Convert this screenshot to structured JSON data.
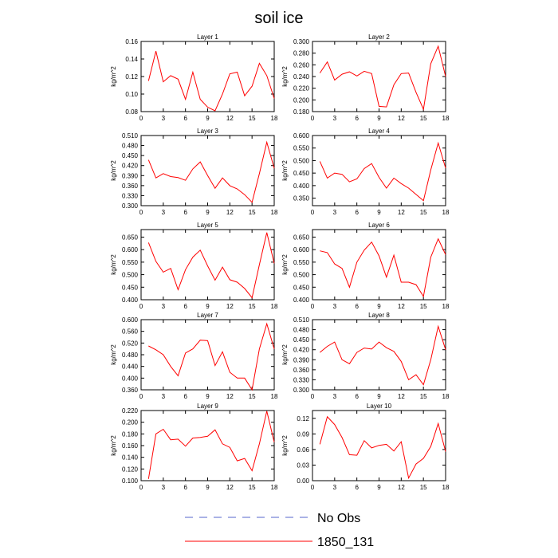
{
  "title": "soil ice",
  "legend": [
    {
      "label": "No Obs",
      "color": "#5566cc",
      "dash": true
    },
    {
      "label": "1850_131",
      "color": "#ff0000",
      "dash": false
    }
  ],
  "chart_data": [
    {
      "type": "line",
      "title": "Layer 1",
      "ylabel": "kg/m^2",
      "xlim": [
        0,
        18
      ],
      "xticks": [
        0,
        3,
        6,
        9,
        12,
        15,
        18
      ],
      "xtick_labels": [
        "0",
        "3",
        "6",
        "9",
        "12",
        "15",
        "18"
      ],
      "ylim": [
        0.08,
        0.16
      ],
      "yticks": [
        0.08,
        0.1,
        0.12,
        0.14,
        0.16
      ],
      "ytick_labels": [
        "0.08",
        "0.10",
        "0.12",
        "0.14",
        "0.16"
      ],
      "series": [
        {
          "name": "1850_131",
          "x": [
            1,
            2,
            3,
            4,
            5,
            6,
            7,
            8,
            9,
            10,
            11,
            12,
            13,
            14,
            15,
            16,
            17,
            18
          ],
          "values": [
            0.115,
            0.149,
            0.114,
            0.121,
            0.117,
            0.094,
            0.125,
            0.094,
            0.085,
            0.081,
            0.1,
            0.123,
            0.125,
            0.098,
            0.109,
            0.135,
            0.121,
            0.095
          ]
        }
      ]
    },
    {
      "type": "line",
      "title": "Layer 2",
      "ylabel": "kg/m^2",
      "xlim": [
        0,
        18
      ],
      "xticks": [
        0,
        3,
        6,
        9,
        12,
        15,
        18
      ],
      "xtick_labels": [
        "0",
        "3",
        "6",
        "9",
        "12",
        "15",
        "18"
      ],
      "ylim": [
        0.18,
        0.3
      ],
      "yticks": [
        0.18,
        0.2,
        0.22,
        0.24,
        0.26,
        0.28,
        0.3
      ],
      "ytick_labels": [
        "0.180",
        "0.200",
        "0.220",
        "0.240",
        "0.260",
        "0.280",
        "0.300"
      ],
      "series": [
        {
          "name": "1850_131",
          "x": [
            1,
            2,
            3,
            4,
            5,
            6,
            7,
            8,
            9,
            10,
            11,
            12,
            13,
            14,
            15,
            16,
            17,
            18
          ],
          "values": [
            0.246,
            0.265,
            0.234,
            0.244,
            0.248,
            0.241,
            0.249,
            0.245,
            0.189,
            0.188,
            0.226,
            0.245,
            0.246,
            0.213,
            0.184,
            0.262,
            0.292,
            0.24
          ]
        }
      ]
    },
    {
      "type": "line",
      "title": "Layer 3",
      "ylabel": "kg/m^2",
      "xlim": [
        0,
        18
      ],
      "xticks": [
        0,
        3,
        6,
        9,
        12,
        15,
        18
      ],
      "xtick_labels": [
        "0",
        "3",
        "6",
        "9",
        "12",
        "15",
        "18"
      ],
      "ylim": [
        0.3,
        0.51
      ],
      "yticks": [
        0.3,
        0.33,
        0.36,
        0.39,
        0.42,
        0.45,
        0.48,
        0.51
      ],
      "ytick_labels": [
        "0.300",
        "0.330",
        "0.360",
        "0.390",
        "0.420",
        "0.450",
        "0.480",
        "0.510"
      ],
      "series": [
        {
          "name": "1850_131",
          "x": [
            1,
            2,
            3,
            4,
            5,
            6,
            7,
            8,
            9,
            10,
            11,
            12,
            13,
            14,
            15,
            16,
            17,
            18
          ],
          "values": [
            0.437,
            0.383,
            0.396,
            0.387,
            0.384,
            0.376,
            0.41,
            0.431,
            0.39,
            0.352,
            0.383,
            0.36,
            0.35,
            0.333,
            0.31,
            0.396,
            0.49,
            0.412
          ]
        }
      ]
    },
    {
      "type": "line",
      "title": "Layer 4",
      "ylabel": "kg/m^2",
      "xlim": [
        0,
        18
      ],
      "xticks": [
        0,
        3,
        6,
        9,
        12,
        15,
        18
      ],
      "xtick_labels": [
        "0",
        "3",
        "6",
        "9",
        "12",
        "15",
        "18"
      ],
      "ylim": [
        0.32,
        0.6
      ],
      "yticks": [
        0.35,
        0.4,
        0.45,
        0.5,
        0.55,
        0.6
      ],
      "ytick_labels": [
        "0.350",
        "0.400",
        "0.450",
        "0.500",
        "0.550",
        "0.600"
      ],
      "series": [
        {
          "name": "1850_131",
          "x": [
            1,
            2,
            3,
            4,
            5,
            6,
            7,
            8,
            9,
            10,
            11,
            12,
            13,
            14,
            15,
            16,
            17,
            18
          ],
          "values": [
            0.497,
            0.43,
            0.45,
            0.445,
            0.415,
            0.427,
            0.468,
            0.488,
            0.433,
            0.39,
            0.43,
            0.408,
            0.39,
            0.365,
            0.34,
            0.463,
            0.57,
            0.47
          ]
        }
      ]
    },
    {
      "type": "line",
      "title": "Layer 5",
      "ylabel": "kg/m^2",
      "xlim": [
        0,
        18
      ],
      "xticks": [
        0,
        3,
        6,
        9,
        12,
        15,
        18
      ],
      "xtick_labels": [
        "0",
        "3",
        "6",
        "9",
        "12",
        "15",
        "18"
      ],
      "ylim": [
        0.4,
        0.68
      ],
      "yticks": [
        0.4,
        0.45,
        0.5,
        0.55,
        0.6,
        0.65
      ],
      "ytick_labels": [
        "0.400",
        "0.450",
        "0.500",
        "0.550",
        "0.600",
        "0.650"
      ],
      "series": [
        {
          "name": "1850_131",
          "x": [
            1,
            2,
            3,
            4,
            5,
            6,
            7,
            8,
            9,
            10,
            11,
            12,
            13,
            14,
            15,
            16,
            17,
            18
          ],
          "values": [
            0.628,
            0.553,
            0.51,
            0.525,
            0.44,
            0.52,
            0.57,
            0.598,
            0.535,
            0.478,
            0.53,
            0.48,
            0.47,
            0.445,
            0.408,
            0.54,
            0.668,
            0.545
          ]
        }
      ]
    },
    {
      "type": "line",
      "title": "Layer 6",
      "ylabel": "kg/m^2",
      "xlim": [
        0,
        18
      ],
      "xticks": [
        0,
        3,
        6,
        9,
        12,
        15,
        18
      ],
      "xtick_labels": [
        "0",
        "3",
        "6",
        "9",
        "12",
        "15",
        "18"
      ],
      "ylim": [
        0.4,
        0.68
      ],
      "yticks": [
        0.4,
        0.45,
        0.5,
        0.55,
        0.6,
        0.65
      ],
      "ytick_labels": [
        "0.400",
        "0.450",
        "0.500",
        "0.550",
        "0.600",
        "0.650"
      ],
      "series": [
        {
          "name": "1850_131",
          "x": [
            1,
            2,
            3,
            4,
            5,
            6,
            7,
            8,
            9,
            10,
            11,
            12,
            13,
            14,
            15,
            16,
            17,
            18
          ],
          "values": [
            0.595,
            0.588,
            0.543,
            0.525,
            0.45,
            0.55,
            0.598,
            0.63,
            0.575,
            0.49,
            0.578,
            0.47,
            0.47,
            0.46,
            0.413,
            0.57,
            0.643,
            0.58
          ]
        }
      ]
    },
    {
      "type": "line",
      "title": "Layer 7",
      "ylabel": "kg/m^2",
      "xlim": [
        0,
        18
      ],
      "xticks": [
        0,
        3,
        6,
        9,
        12,
        15,
        18
      ],
      "xtick_labels": [
        "0",
        "3",
        "6",
        "9",
        "12",
        "15",
        "18"
      ],
      "ylim": [
        0.36,
        0.6
      ],
      "yticks": [
        0.36,
        0.4,
        0.44,
        0.48,
        0.52,
        0.56,
        0.6
      ],
      "ytick_labels": [
        "0.360",
        "0.400",
        "0.440",
        "0.480",
        "0.520",
        "0.560",
        "0.600"
      ],
      "series": [
        {
          "name": "1850_131",
          "x": [
            1,
            2,
            3,
            4,
            5,
            6,
            7,
            8,
            9,
            10,
            11,
            12,
            13,
            14,
            15,
            16,
            17,
            18
          ],
          "values": [
            0.51,
            0.497,
            0.48,
            0.44,
            0.408,
            0.486,
            0.5,
            0.53,
            0.528,
            0.443,
            0.49,
            0.42,
            0.4,
            0.4,
            0.36,
            0.5,
            0.586,
            0.5
          ]
        }
      ]
    },
    {
      "type": "line",
      "title": "Layer 8",
      "ylabel": "kg/m^2",
      "xlim": [
        0,
        18
      ],
      "xticks": [
        0,
        3,
        6,
        9,
        12,
        15,
        18
      ],
      "xtick_labels": [
        "0",
        "3",
        "6",
        "9",
        "12",
        "15",
        "18"
      ],
      "ylim": [
        0.3,
        0.51
      ],
      "yticks": [
        0.3,
        0.33,
        0.36,
        0.39,
        0.42,
        0.45,
        0.48,
        0.51
      ],
      "ytick_labels": [
        "0.300",
        "0.330",
        "0.360",
        "0.390",
        "0.420",
        "0.450",
        "0.480",
        "0.510"
      ],
      "series": [
        {
          "name": "1850_131",
          "x": [
            1,
            2,
            3,
            4,
            5,
            6,
            7,
            8,
            9,
            10,
            11,
            12,
            13,
            14,
            15,
            16,
            17,
            18
          ],
          "values": [
            0.412,
            0.43,
            0.443,
            0.39,
            0.378,
            0.412,
            0.425,
            0.422,
            0.443,
            0.426,
            0.415,
            0.385,
            0.33,
            0.345,
            0.315,
            0.39,
            0.49,
            0.42
          ]
        }
      ]
    },
    {
      "type": "line",
      "title": "Layer 9",
      "ylabel": "kg/m^2",
      "xlim": [
        0,
        18
      ],
      "xticks": [
        0,
        3,
        6,
        9,
        12,
        15,
        18
      ],
      "xtick_labels": [
        "0",
        "3",
        "6",
        "9",
        "12",
        "15",
        "18"
      ],
      "ylim": [
        0.1,
        0.22
      ],
      "yticks": [
        0.1,
        0.12,
        0.14,
        0.16,
        0.18,
        0.2,
        0.22
      ],
      "ytick_labels": [
        "0.100",
        "0.120",
        "0.140",
        "0.160",
        "0.180",
        "0.200",
        "0.220"
      ],
      "series": [
        {
          "name": "1850_131",
          "x": [
            1,
            2,
            3,
            4,
            5,
            6,
            7,
            8,
            9,
            10,
            11,
            12,
            13,
            14,
            15,
            16,
            17,
            18
          ],
          "values": [
            0.103,
            0.18,
            0.188,
            0.17,
            0.171,
            0.159,
            0.173,
            0.174,
            0.176,
            0.187,
            0.163,
            0.157,
            0.134,
            0.138,
            0.117,
            0.163,
            0.219,
            0.166
          ]
        }
      ]
    },
    {
      "type": "line",
      "title": "Layer 10",
      "ylabel": "kg/m^2",
      "xlim": [
        0,
        18
      ],
      "xticks": [
        0,
        3,
        6,
        9,
        12,
        15,
        18
      ],
      "xtick_labels": [
        "0",
        "3",
        "6",
        "9",
        "12",
        "15",
        "18"
      ],
      "ylim": [
        0.0,
        0.135
      ],
      "yticks": [
        0.0,
        0.03,
        0.06,
        0.09,
        0.12
      ],
      "ytick_labels": [
        "0.00",
        "0.03",
        "0.06",
        "0.09",
        "0.12"
      ],
      "series": [
        {
          "name": "1850_131",
          "x": [
            1,
            2,
            3,
            4,
            5,
            6,
            7,
            8,
            9,
            10,
            11,
            12,
            13,
            14,
            15,
            16,
            17,
            18
          ],
          "values": [
            0.07,
            0.123,
            0.108,
            0.083,
            0.05,
            0.049,
            0.077,
            0.063,
            0.068,
            0.07,
            0.057,
            0.075,
            0.005,
            0.032,
            0.043,
            0.066,
            0.11,
            0.056
          ]
        }
      ]
    }
  ]
}
